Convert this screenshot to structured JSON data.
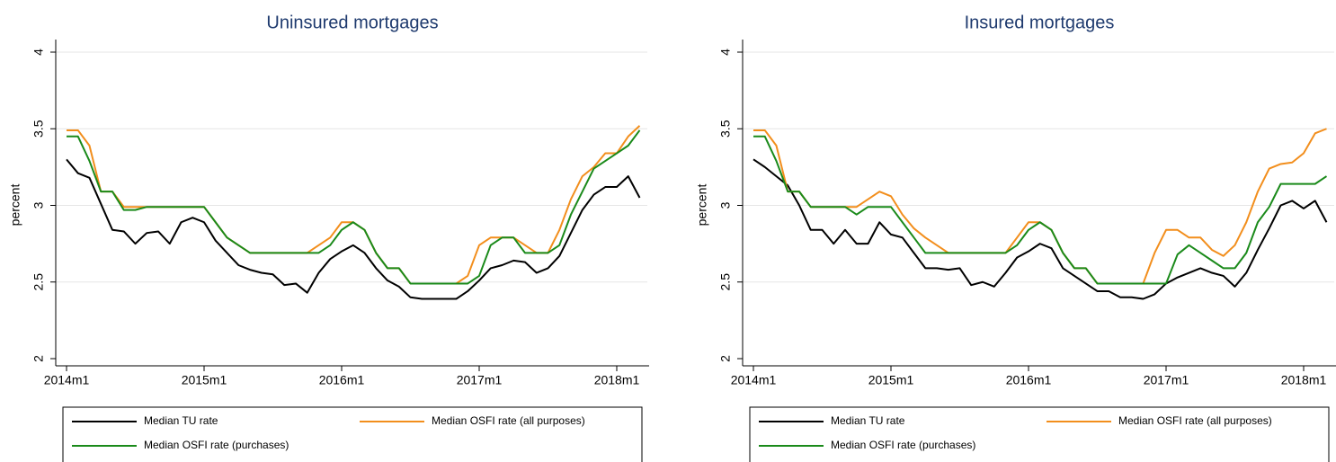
{
  "chart_data": [
    {
      "type": "line",
      "title": "Uninsured mortgages",
      "y_label": "percent",
      "categories": [
        "2014m1",
        null,
        null,
        null,
        null,
        null,
        null,
        null,
        null,
        null,
        null,
        null,
        "2015m1",
        null,
        null,
        null,
        null,
        null,
        null,
        null,
        null,
        null,
        null,
        null,
        "2016m1",
        null,
        null,
        null,
        null,
        null,
        null,
        null,
        null,
        null,
        null,
        null,
        "2017m1",
        null,
        null,
        null,
        null,
        null,
        null,
        null,
        null,
        null,
        null,
        null,
        "2018m1",
        null,
        null
      ],
      "ylim": [
        2,
        4
      ],
      "yticks": [
        2,
        2.5,
        3,
        3.5,
        4
      ],
      "grid": true,
      "series": [
        {
          "name": "Median TU rate",
          "color": "#000000",
          "values": [
            3.3,
            3.21,
            3.18,
            3.01,
            2.84,
            2.83,
            2.75,
            2.82,
            2.83,
            2.75,
            2.89,
            2.92,
            2.89,
            2.77,
            2.69,
            2.61,
            2.58,
            2.56,
            2.55,
            2.48,
            2.49,
            2.43,
            2.56,
            2.65,
            2.7,
            2.74,
            2.69,
            2.59,
            2.51,
            2.47,
            2.4,
            2.39,
            2.39,
            2.39,
            2.39,
            2.44,
            2.51,
            2.59,
            2.61,
            2.64,
            2.63,
            2.56,
            2.59,
            2.67,
            2.82,
            2.97,
            3.07,
            3.12,
            3.12,
            3.19,
            3.05
          ]
        },
        {
          "name": "Median OSFI rate (all purposes)",
          "color": "#f28e1c",
          "values": [
            3.49,
            3.49,
            3.39,
            3.09,
            3.09,
            2.99,
            2.99,
            2.99,
            2.99,
            2.99,
            2.99,
            2.99,
            2.99,
            2.89,
            2.79,
            2.74,
            2.69,
            2.69,
            2.69,
            2.69,
            2.69,
            2.69,
            2.74,
            2.79,
            2.89,
            2.89,
            2.84,
            2.69,
            2.59,
            2.59,
            2.49,
            2.49,
            2.49,
            2.49,
            2.49,
            2.54,
            2.74,
            2.79,
            2.79,
            2.79,
            2.74,
            2.69,
            2.69,
            2.84,
            3.04,
            3.19,
            3.25,
            3.34,
            3.34,
            3.45,
            3.52
          ]
        },
        {
          "name": "Median OSFI rate (purchases)",
          "color": "#1a8a1a",
          "values": [
            3.45,
            3.45,
            3.29,
            3.09,
            3.09,
            2.97,
            2.97,
            2.99,
            2.99,
            2.99,
            2.99,
            2.99,
            2.99,
            2.89,
            2.79,
            2.74,
            2.69,
            2.69,
            2.69,
            2.69,
            2.69,
            2.69,
            2.69,
            2.74,
            2.84,
            2.89,
            2.84,
            2.69,
            2.59,
            2.59,
            2.49,
            2.49,
            2.49,
            2.49,
            2.49,
            2.49,
            2.54,
            2.74,
            2.79,
            2.79,
            2.69,
            2.69,
            2.69,
            2.74,
            2.94,
            3.09,
            3.24,
            3.29,
            3.34,
            3.39,
            3.49
          ]
        }
      ]
    },
    {
      "type": "line",
      "title": "Insured mortgages",
      "y_label": "percent",
      "categories": [
        "2014m1",
        null,
        null,
        null,
        null,
        null,
        null,
        null,
        null,
        null,
        null,
        null,
        "2015m1",
        null,
        null,
        null,
        null,
        null,
        null,
        null,
        null,
        null,
        null,
        null,
        "2016m1",
        null,
        null,
        null,
        null,
        null,
        null,
        null,
        null,
        null,
        null,
        null,
        "2017m1",
        null,
        null,
        null,
        null,
        null,
        null,
        null,
        null,
        null,
        null,
        null,
        "2018m1",
        null,
        null
      ],
      "ylim": [
        2,
        4
      ],
      "yticks": [
        2,
        2.5,
        3,
        3.5,
        4
      ],
      "grid": true,
      "series": [
        {
          "name": "Median TU rate",
          "color": "#000000",
          "values": [
            3.3,
            3.25,
            3.19,
            3.13,
            3.0,
            2.84,
            2.84,
            2.75,
            2.84,
            2.75,
            2.75,
            2.89,
            2.81,
            2.79,
            2.69,
            2.59,
            2.59,
            2.58,
            2.59,
            2.48,
            2.5,
            2.47,
            2.56,
            2.66,
            2.7,
            2.75,
            2.72,
            2.59,
            2.54,
            2.49,
            2.44,
            2.44,
            2.4,
            2.4,
            2.39,
            2.42,
            2.49,
            2.53,
            2.56,
            2.59,
            2.56,
            2.54,
            2.47,
            2.56,
            2.71,
            2.85,
            3.0,
            3.03,
            2.98,
            3.03,
            2.89
          ]
        },
        {
          "name": "Median OSFI rate (all purposes)",
          "color": "#f28e1c",
          "values": [
            3.49,
            3.49,
            3.39,
            3.09,
            3.09,
            2.99,
            2.99,
            2.99,
            2.99,
            2.99,
            3.04,
            3.09,
            3.06,
            2.94,
            2.85,
            2.79,
            2.74,
            2.69,
            2.69,
            2.69,
            2.69,
            2.69,
            2.69,
            2.79,
            2.89,
            2.89,
            2.84,
            2.69,
            2.59,
            2.59,
            2.49,
            2.49,
            2.49,
            2.49,
            2.49,
            2.69,
            2.84,
            2.84,
            2.79,
            2.79,
            2.71,
            2.67,
            2.74,
            2.89,
            3.09,
            3.24,
            3.27,
            3.28,
            3.34,
            3.47,
            3.5
          ]
        },
        {
          "name": "Median OSFI rate (purchases)",
          "color": "#1a8a1a",
          "values": [
            3.45,
            3.45,
            3.29,
            3.09,
            3.09,
            2.99,
            2.99,
            2.99,
            2.99,
            2.94,
            2.99,
            2.99,
            2.99,
            2.89,
            2.79,
            2.69,
            2.69,
            2.69,
            2.69,
            2.69,
            2.69,
            2.69,
            2.69,
            2.74,
            2.84,
            2.89,
            2.84,
            2.69,
            2.59,
            2.59,
            2.49,
            2.49,
            2.49,
            2.49,
            2.49,
            2.49,
            2.49,
            2.68,
            2.74,
            2.69,
            2.64,
            2.59,
            2.59,
            2.69,
            2.89,
            2.99,
            3.14,
            3.14,
            3.14,
            3.14,
            3.19
          ]
        }
      ]
    }
  ]
}
